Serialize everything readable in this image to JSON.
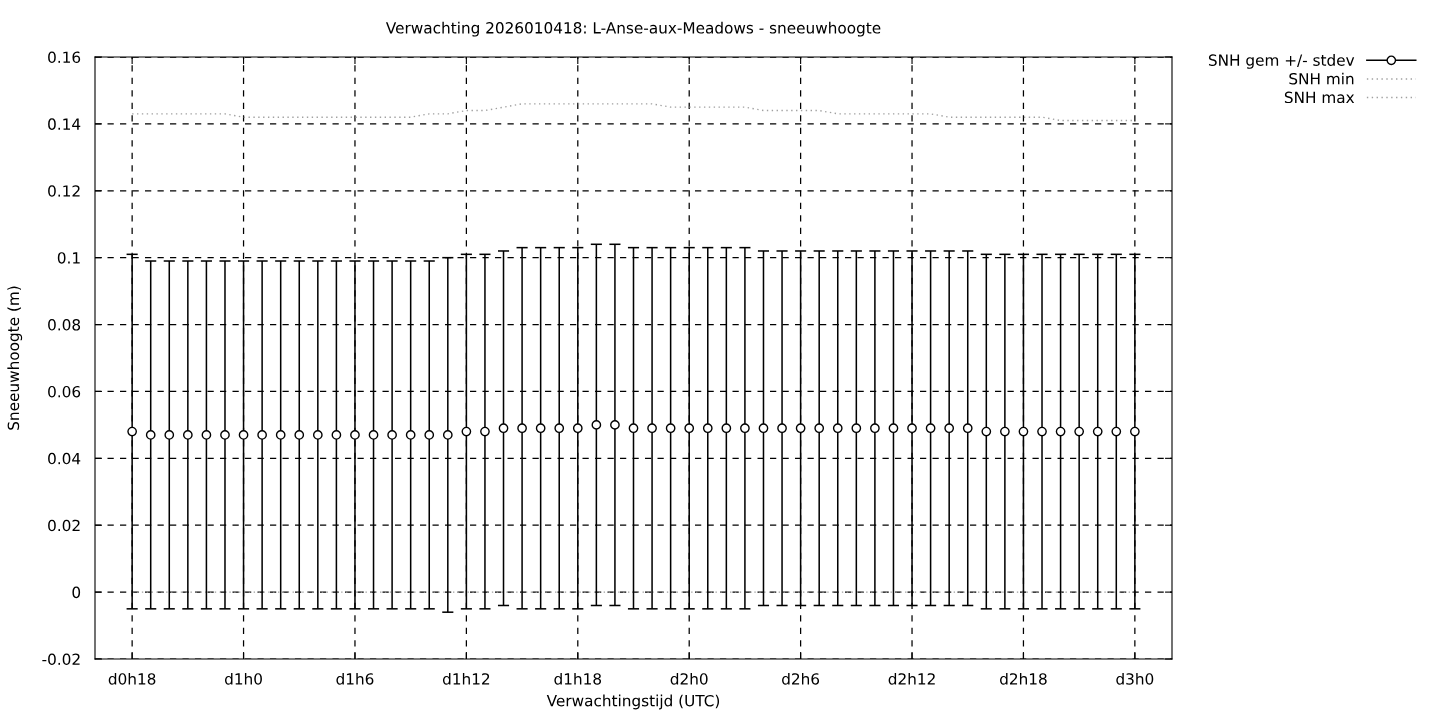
{
  "chart_data": {
    "type": "scatter",
    "title": "Verwachting 2026010418: L-Anse-aux-Meadows - sneeuwhoogte",
    "xlabel": "Verwachtingstijd (UTC)",
    "ylabel": "Sneeuwhoogte (m)",
    "categories": [
      "d0h18",
      null,
      null,
      null,
      null,
      null,
      "d1h0",
      null,
      null,
      null,
      null,
      null,
      "d1h6",
      null,
      null,
      null,
      null,
      null,
      "d1h12",
      null,
      null,
      null,
      null,
      null,
      "d1h18",
      null,
      null,
      null,
      null,
      null,
      "d2h0",
      null,
      null,
      null,
      null,
      null,
      "d2h6",
      null,
      null,
      null,
      null,
      null,
      "d2h12",
      null,
      null,
      null,
      null,
      null,
      "d2h18",
      null,
      null,
      null,
      null,
      null,
      "d3h0"
    ],
    "series": [
      {
        "name": "SNH gem +/- stdev",
        "marker": "circle",
        "color": "#000000",
        "values": [
          0.048,
          0.047,
          0.047,
          0.047,
          0.047,
          0.047,
          0.047,
          0.047,
          0.047,
          0.047,
          0.047,
          0.047,
          0.047,
          0.047,
          0.047,
          0.047,
          0.047,
          0.047,
          0.048,
          0.048,
          0.049,
          0.049,
          0.049,
          0.049,
          0.049,
          0.05,
          0.05,
          0.049,
          0.049,
          0.049,
          0.049,
          0.049,
          0.049,
          0.049,
          0.049,
          0.049,
          0.049,
          0.049,
          0.049,
          0.049,
          0.049,
          0.049,
          0.049,
          0.049,
          0.049,
          0.049,
          0.048,
          0.048,
          0.048,
          0.048,
          0.048,
          0.048,
          0.048,
          0.048,
          0.048
        ],
        "errors": [
          0.053,
          0.052,
          0.052,
          0.052,
          0.052,
          0.052,
          0.052,
          0.052,
          0.052,
          0.052,
          0.052,
          0.052,
          0.052,
          0.052,
          0.052,
          0.052,
          0.052,
          0.053,
          0.053,
          0.053,
          0.053,
          0.054,
          0.054,
          0.054,
          0.054,
          0.054,
          0.054,
          0.054,
          0.054,
          0.054,
          0.054,
          0.054,
          0.054,
          0.054,
          0.053,
          0.053,
          0.053,
          0.053,
          0.053,
          0.053,
          0.053,
          0.053,
          0.053,
          0.053,
          0.053,
          0.053,
          0.053,
          0.053,
          0.053,
          0.053,
          0.053,
          0.053,
          0.053,
          0.053,
          0.053
        ]
      },
      {
        "name": "SNH min",
        "type": "line",
        "line_style": "dotted",
        "color": "#a0a0a0",
        "values": [
          0,
          0,
          0,
          0,
          0,
          0,
          0,
          0,
          0,
          0,
          0,
          0,
          0,
          0,
          0,
          0,
          0,
          0,
          0,
          0,
          0,
          0,
          0,
          0,
          0,
          0,
          0,
          0,
          0,
          0,
          0,
          0,
          0,
          0,
          0,
          0,
          0,
          0,
          0,
          0,
          0,
          0,
          0,
          0,
          0,
          0,
          0,
          0,
          0,
          0,
          0,
          0,
          0,
          0,
          0
        ]
      },
      {
        "name": "SNH max",
        "type": "line",
        "line_style": "dotted",
        "color": "#a0a0a0",
        "values": [
          0.143,
          0.143,
          0.143,
          0.143,
          0.143,
          0.143,
          0.142,
          0.142,
          0.142,
          0.142,
          0.142,
          0.142,
          0.142,
          0.142,
          0.142,
          0.142,
          0.143,
          0.143,
          0.144,
          0.144,
          0.145,
          0.146,
          0.146,
          0.146,
          0.146,
          0.146,
          0.146,
          0.146,
          0.146,
          0.145,
          0.145,
          0.145,
          0.145,
          0.145,
          0.144,
          0.144,
          0.144,
          0.144,
          0.143,
          0.143,
          0.143,
          0.143,
          0.143,
          0.143,
          0.142,
          0.142,
          0.142,
          0.142,
          0.142,
          0.142,
          0.141,
          0.141,
          0.141,
          0.141,
          0.141
        ]
      }
    ],
    "ylim": [
      -0.02,
      0.16
    ],
    "yticks": [
      -0.02,
      0,
      0.02,
      0.04,
      0.06,
      0.08,
      0.1,
      0.12,
      0.14,
      0.16
    ],
    "grid": true,
    "legend": "top right"
  }
}
